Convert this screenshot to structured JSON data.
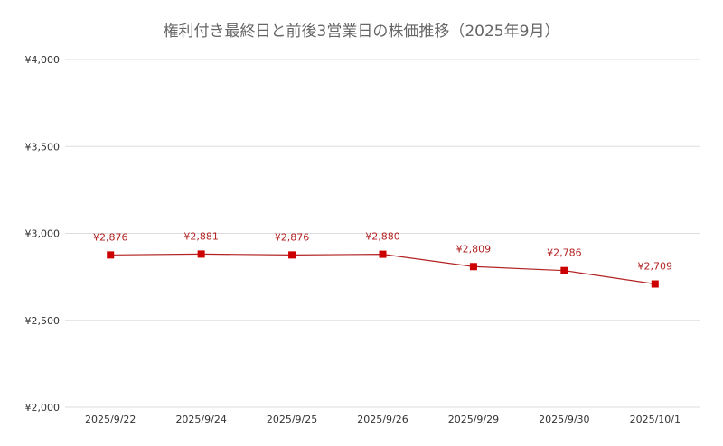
{
  "chart_data": {
    "type": "line",
    "title": "権利付き最終日と前後3営業日の株価推移（2025年9月）",
    "xlabel": "",
    "ylabel": "",
    "categories": [
      "2025/9/22",
      "2025/9/24",
      "2025/9/25",
      "2025/9/26",
      "2025/9/29",
      "2025/9/30",
      "2025/10/1"
    ],
    "series": [
      {
        "values": [
          2876,
          2881,
          2876,
          2880,
          2809,
          2786,
          2709
        ],
        "data_labels": [
          "¥2,876",
          "¥2,881",
          "¥2,876",
          "¥2,880",
          "¥2,809",
          "¥2,786",
          "¥2,709"
        ]
      }
    ],
    "ylim": [
      2000,
      4000
    ],
    "yticks": [
      2000,
      2500,
      3000,
      3500,
      4000
    ],
    "ytick_labels": [
      "¥2,000",
      "¥2,500",
      "¥3,000",
      "¥3,500",
      "¥4,000"
    ],
    "grid": true,
    "legend": "none",
    "colors": {
      "series": "#cc0000",
      "line": "#b22222",
      "label": "#b22222",
      "grid": "#dddddd",
      "title": "#666666"
    }
  }
}
